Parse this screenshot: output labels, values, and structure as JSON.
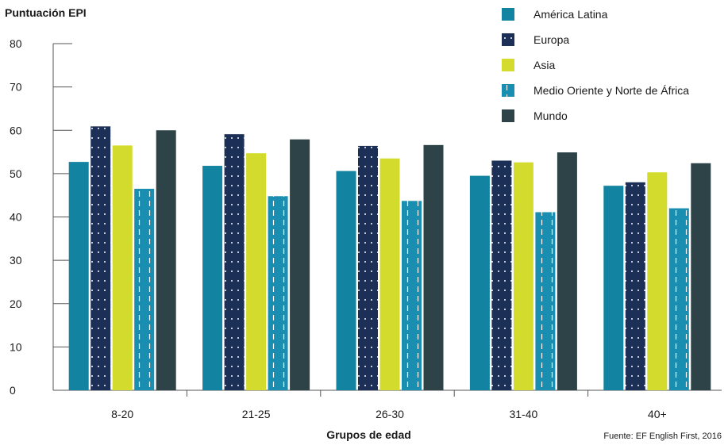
{
  "chart_data": {
    "type": "bar",
    "ylabel": "Puntuación EPI",
    "xlabel": "Grupos de edad",
    "source": "Fuente: EF English First, 2016",
    "categories": [
      "8-20",
      "21-25",
      "26-30",
      "31-40",
      "40+"
    ],
    "ylim": [
      0,
      80
    ],
    "yticks": [
      "0",
      "10",
      "20",
      "30",
      "40",
      "50",
      "60",
      "70",
      "80"
    ],
    "grid": false,
    "legend_position": "top-right",
    "series": [
      {
        "name": "América Latina",
        "color": "#1283a0",
        "pattern": "solid",
        "values": [
          52.7,
          51.8,
          50.6,
          49.5,
          47.2
        ]
      },
      {
        "name": "Europa",
        "color": "#1b2f57",
        "pattern": "dots",
        "values": [
          60.9,
          59.1,
          56.4,
          53.0,
          48.0
        ]
      },
      {
        "name": "Asia",
        "color": "#d3dc2c",
        "pattern": "solid",
        "values": [
          56.5,
          54.7,
          53.5,
          52.6,
          50.3
        ]
      },
      {
        "name": "Medio Oriente y Norte de África",
        "color": "#1a8eb0",
        "pattern": "dashes",
        "values": [
          46.5,
          44.8,
          43.7,
          41.1,
          42.0
        ]
      },
      {
        "name": "Mundo",
        "color": "#2e4348",
        "pattern": "solid",
        "values": [
          60.0,
          57.9,
          56.6,
          54.9,
          52.4
        ]
      }
    ]
  }
}
